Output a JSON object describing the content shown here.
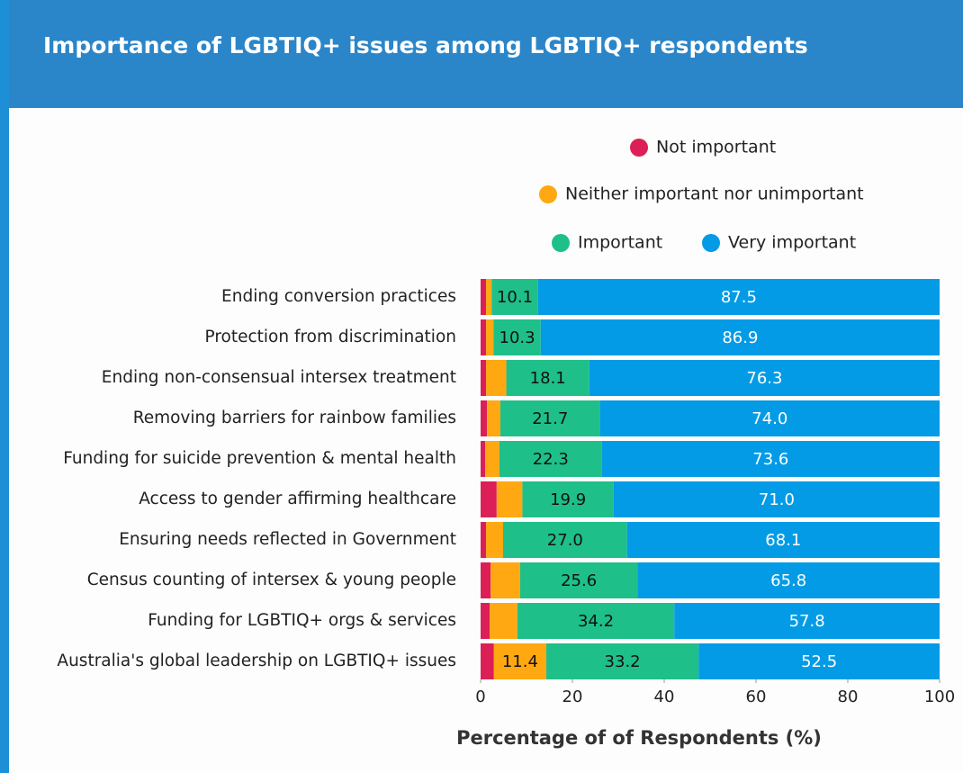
{
  "chart_data": {
    "type": "stacked-bar-horizontal",
    "title": "Importance of LGBTIQ+ issues among LGBTIQ+ respondents",
    "x_label": "Percentage of of Respondents (%)",
    "categories": [
      "Ending conversion practices",
      "Protection from discrimination",
      "Ending non-consensual intersex treatment",
      "Removing barriers for rainbow families",
      "Funding for suicide prevention & mental health",
      "Access to gender affirming healthcare",
      "Ensuring needs reflected in Government",
      "Census counting of intersex & young people",
      "Funding for LGBTIQ+ orgs & services",
      "Australia's global leadership on LGBTIQ+ issues"
    ],
    "series": [
      {
        "name": "Not important",
        "color": "#dc1f56",
        "values": [
          1.2,
          1.2,
          1.2,
          1.4,
          1.0,
          3.5,
          1.2,
          2.2,
          2.0,
          2.9
        ],
        "value_labels": [
          null,
          null,
          null,
          null,
          null,
          null,
          null,
          null,
          null,
          null
        ]
      },
      {
        "name": "Neither important nor unimportant",
        "color": "#ffa811",
        "values": [
          1.2,
          1.6,
          4.4,
          2.9,
          3.1,
          5.6,
          3.7,
          6.4,
          6.0,
          11.4
        ],
        "value_labels": [
          null,
          null,
          null,
          null,
          null,
          null,
          null,
          null,
          null,
          "11.4"
        ]
      },
      {
        "name": "Important",
        "color": "#1fbf8a",
        "values": [
          10.1,
          10.3,
          18.1,
          21.7,
          22.3,
          19.9,
          27.0,
          25.6,
          34.2,
          33.2
        ],
        "value_labels": [
          "10.1",
          "10.3",
          "18.1",
          "21.7",
          "22.3",
          "19.9",
          "27.0",
          "25.6",
          "34.2",
          "33.2"
        ]
      },
      {
        "name": "Very important",
        "color": "#039be5",
        "values": [
          87.5,
          86.9,
          76.3,
          74.0,
          73.6,
          71.0,
          68.1,
          65.8,
          57.8,
          52.5
        ],
        "value_labels": [
          "87.5",
          "86.9",
          "76.3",
          "74.0",
          "73.6",
          "71.0",
          "68.1",
          "65.8",
          "57.8",
          "52.5"
        ]
      }
    ],
    "xlim": [
      0,
      100
    ],
    "xticks": [
      0,
      20,
      40,
      60,
      80,
      100
    ]
  }
}
